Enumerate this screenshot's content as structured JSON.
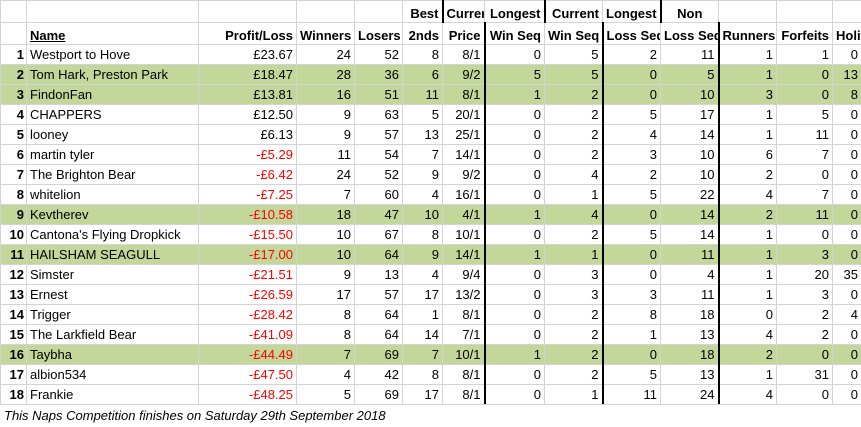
{
  "headers": {
    "row1": {
      "best": "Best",
      "current_win": "Current",
      "longest_win": "Longest",
      "current_loss": "Current",
      "longest_loss": "Longest",
      "non": "Non"
    },
    "row2": {
      "name": "Name",
      "profit": "Profit/Loss",
      "winners": "Winners",
      "losers": "Losers",
      "seconds": "2nds",
      "price": "Price",
      "win_seq": "Win Seq",
      "longest_win_seq": "Win Seq",
      "loss_seq": "Loss Seq",
      "longest_loss_seq": "Loss Seq",
      "runners": "Runners",
      "forfeits": "Forfeits",
      "holiday": "Holiday"
    }
  },
  "rows": [
    {
      "rank": "1",
      "name": "Westport to Hove",
      "profit": "£23.67",
      "winners": "24",
      "losers": "52",
      "seconds": "8",
      "price": "8/1",
      "cur_win": "0",
      "long_win": "5",
      "cur_loss": "2",
      "long_loss": "11",
      "non": "1",
      "forfeits": "1",
      "holiday": "0",
      "highlight": false,
      "negative": false
    },
    {
      "rank": "2",
      "name": "Tom Hark, Preston Park",
      "profit": "£18.47",
      "winners": "28",
      "losers": "36",
      "seconds": "6",
      "price": "9/2",
      "cur_win": "5",
      "long_win": "5",
      "cur_loss": "0",
      "long_loss": "5",
      "non": "1",
      "forfeits": "0",
      "holiday": "13",
      "highlight": true,
      "negative": false
    },
    {
      "rank": "3",
      "name": "FindonFan",
      "profit": "£13.81",
      "winners": "16",
      "losers": "51",
      "seconds": "11",
      "price": "8/1",
      "cur_win": "1",
      "long_win": "2",
      "cur_loss": "0",
      "long_loss": "10",
      "non": "3",
      "forfeits": "0",
      "holiday": "8",
      "highlight": true,
      "negative": false
    },
    {
      "rank": "4",
      "name": "CHAPPERS",
      "profit": "£12.50",
      "winners": "9",
      "losers": "63",
      "seconds": "5",
      "price": "20/1",
      "cur_win": "0",
      "long_win": "2",
      "cur_loss": "5",
      "long_loss": "17",
      "non": "1",
      "forfeits": "5",
      "holiday": "0",
      "highlight": false,
      "negative": false
    },
    {
      "rank": "5",
      "name": "looney",
      "profit": "£6.13",
      "winners": "9",
      "losers": "57",
      "seconds": "13",
      "price": "25/1",
      "cur_win": "0",
      "long_win": "2",
      "cur_loss": "4",
      "long_loss": "14",
      "non": "1",
      "forfeits": "11",
      "holiday": "0",
      "highlight": false,
      "negative": false
    },
    {
      "rank": "6",
      "name": "martin tyler",
      "profit": "-£5.29",
      "winners": "11",
      "losers": "54",
      "seconds": "7",
      "price": "14/1",
      "cur_win": "0",
      "long_win": "2",
      "cur_loss": "3",
      "long_loss": "10",
      "non": "6",
      "forfeits": "7",
      "holiday": "0",
      "highlight": false,
      "negative": true
    },
    {
      "rank": "7",
      "name": "The Brighton Bear",
      "profit": "-£6.42",
      "winners": "24",
      "losers": "52",
      "seconds": "9",
      "price": "9/2",
      "cur_win": "0",
      "long_win": "4",
      "cur_loss": "2",
      "long_loss": "10",
      "non": "2",
      "forfeits": "0",
      "holiday": "0",
      "highlight": false,
      "negative": true
    },
    {
      "rank": "8",
      "name": "whitelion",
      "profit": "-£7.25",
      "winners": "7",
      "losers": "60",
      "seconds": "4",
      "price": "16/1",
      "cur_win": "0",
      "long_win": "1",
      "cur_loss": "5",
      "long_loss": "22",
      "non": "4",
      "forfeits": "7",
      "holiday": "0",
      "highlight": false,
      "negative": true
    },
    {
      "rank": "9",
      "name": "Kevtherev",
      "profit": "-£10.58",
      "winners": "18",
      "losers": "47",
      "seconds": "10",
      "price": "4/1",
      "cur_win": "1",
      "long_win": "4",
      "cur_loss": "0",
      "long_loss": "14",
      "non": "2",
      "forfeits": "11",
      "holiday": "0",
      "highlight": true,
      "negative": true
    },
    {
      "rank": "10",
      "name": "Cantona's Flying Dropkick",
      "profit": "-£15.50",
      "winners": "10",
      "losers": "67",
      "seconds": "8",
      "price": "10/1",
      "cur_win": "0",
      "long_win": "2",
      "cur_loss": "5",
      "long_loss": "14",
      "non": "1",
      "forfeits": "0",
      "holiday": "0",
      "highlight": false,
      "negative": true
    },
    {
      "rank": "11",
      "name": "HAILSHAM SEAGULL",
      "profit": "-£17.00",
      "winners": "10",
      "losers": "64",
      "seconds": "9",
      "price": "14/1",
      "cur_win": "1",
      "long_win": "1",
      "cur_loss": "0",
      "long_loss": "11",
      "non": "1",
      "forfeits": "3",
      "holiday": "0",
      "highlight": true,
      "negative": true
    },
    {
      "rank": "12",
      "name": "Simster",
      "profit": "-£21.51",
      "winners": "9",
      "losers": "13",
      "seconds": "4",
      "price": "9/4",
      "cur_win": "0",
      "long_win": "3",
      "cur_loss": "0",
      "long_loss": "4",
      "non": "1",
      "forfeits": "20",
      "holiday": "35",
      "highlight": false,
      "negative": true
    },
    {
      "rank": "13",
      "name": "Ernest",
      "profit": "-£26.59",
      "winners": "17",
      "losers": "57",
      "seconds": "17",
      "price": "13/2",
      "cur_win": "0",
      "long_win": "3",
      "cur_loss": "3",
      "long_loss": "11",
      "non": "1",
      "forfeits": "3",
      "holiday": "0",
      "highlight": false,
      "negative": true
    },
    {
      "rank": "14",
      "name": "Trigger",
      "profit": "-£28.42",
      "winners": "8",
      "losers": "64",
      "seconds": "1",
      "price": "8/1",
      "cur_win": "0",
      "long_win": "2",
      "cur_loss": "8",
      "long_loss": "18",
      "non": "0",
      "forfeits": "2",
      "holiday": "4",
      "highlight": false,
      "negative": true
    },
    {
      "rank": "15",
      "name": "The Larkfield Bear",
      "profit": "-£41.09",
      "winners": "8",
      "losers": "64",
      "seconds": "14",
      "price": "7/1",
      "cur_win": "0",
      "long_win": "2",
      "cur_loss": "1",
      "long_loss": "13",
      "non": "4",
      "forfeits": "2",
      "holiday": "0",
      "highlight": false,
      "negative": true
    },
    {
      "rank": "16",
      "name": "Taybha",
      "profit": "-£44.49",
      "winners": "7",
      "losers": "69",
      "seconds": "7",
      "price": "10/1",
      "cur_win": "1",
      "long_win": "2",
      "cur_loss": "0",
      "long_loss": "18",
      "non": "2",
      "forfeits": "0",
      "holiday": "0",
      "highlight": true,
      "negative": true
    },
    {
      "rank": "17",
      "name": "albion534",
      "profit": "-£47.50",
      "winners": "4",
      "losers": "42",
      "seconds": "8",
      "price": "8/1",
      "cur_win": "0",
      "long_win": "2",
      "cur_loss": "5",
      "long_loss": "13",
      "non": "1",
      "forfeits": "31",
      "holiday": "0",
      "highlight": false,
      "negative": true
    },
    {
      "rank": "18",
      "name": "Frankie",
      "profit": "-£48.25",
      "winners": "5",
      "losers": "69",
      "seconds": "17",
      "price": "8/1",
      "cur_win": "0",
      "long_win": "1",
      "cur_loss": "11",
      "long_loss": "24",
      "non": "4",
      "forfeits": "0",
      "holiday": "0",
      "highlight": false,
      "negative": true
    }
  ],
  "footer": "This Naps Competition finishes on Saturday 29th September 2018"
}
